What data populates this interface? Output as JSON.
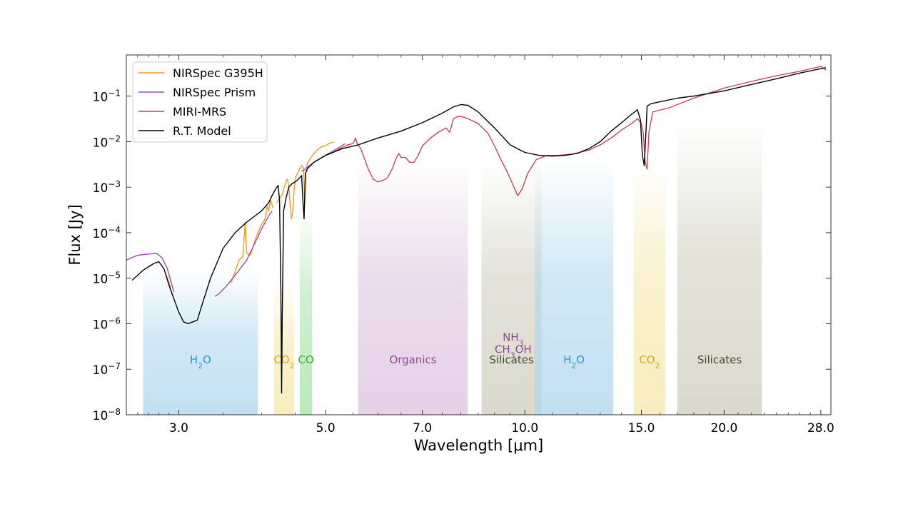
{
  "chart_data": {
    "type": "line",
    "xlabel": "Wavelength [μm]",
    "ylabel": "Flux [Jy]",
    "x_scale": "log",
    "y_scale": "log",
    "xlim": [
      2.5,
      29.0
    ],
    "ylim": [
      1e-08,
      0.8
    ],
    "x_ticks": [
      {
        "value": 3.0,
        "label": "3.0"
      },
      {
        "value": 5.0,
        "label": "5.0"
      },
      {
        "value": 7.0,
        "label": "7.0"
      },
      {
        "value": 10.0,
        "label": "10.0"
      },
      {
        "value": 15.0,
        "label": "15.0"
      },
      {
        "value": 20.0,
        "label": "20.0"
      },
      {
        "value": 28.0,
        "label": "28.0"
      }
    ],
    "y_ticks": [
      {
        "value": 1e-08,
        "base": "10",
        "exp": "−8"
      },
      {
        "value": 1e-07,
        "base": "10",
        "exp": "−7"
      },
      {
        "value": 1e-06,
        "base": "10",
        "exp": "−6"
      },
      {
        "value": 1e-05,
        "base": "10",
        "exp": "−5"
      },
      {
        "value": 0.0001,
        "base": "10",
        "exp": "−4"
      },
      {
        "value": 0.001,
        "base": "10",
        "exp": "−3"
      },
      {
        "value": 0.01,
        "base": "10",
        "exp": "−2"
      },
      {
        "value": 0.1,
        "base": "10",
        "exp": "−1"
      }
    ],
    "legend": {
      "placement": "top-left"
    },
    "bands": [
      {
        "x0": 2.65,
        "x1": 3.95,
        "top": 1.5e-05,
        "color": "#aed6ee",
        "label_parts": [
          [
            "H",
            "n"
          ],
          [
            "2",
            "sub"
          ],
          [
            "O",
            "n"
          ]
        ],
        "label_color": "#2b9bd0",
        "label_y": 1.6e-07
      },
      {
        "x0": 4.18,
        "x1": 4.48,
        "top": 1e-05,
        "color": "#f5e7a8",
        "label_parts": [
          [
            "CO",
            "n"
          ],
          [
            "2",
            "sub"
          ]
        ],
        "label_color": "#d4a52c",
        "label_y": 1.6e-07
      },
      {
        "x0": 4.57,
        "x1": 4.77,
        "top": 0.0004,
        "color": "#a6e3a6",
        "label_parts": [
          [
            "CO",
            "n"
          ]
        ],
        "label_color": "#3da83d",
        "label_y": 1.6e-07
      },
      {
        "x0": 5.6,
        "x1": 8.2,
        "top": 0.004,
        "color": "#dcc2df",
        "label_parts": [
          [
            "Organics",
            "n"
          ]
        ],
        "label_color": "#8a4d8f",
        "label_y": 1.6e-07
      },
      {
        "x0": 8.6,
        "x1": 10.6,
        "top": 0.004,
        "color": "#cdcdbc",
        "label_parts": [
          [
            "Silicates",
            "n"
          ]
        ],
        "label_color": "#4a4a30",
        "label_y": 1.6e-07
      },
      {
        "x0": 10.35,
        "x1": 13.6,
        "top": 0.004,
        "color": "#aed6ee",
        "label_parts": [
          [
            "H",
            "n"
          ],
          [
            "2",
            "sub"
          ],
          [
            "O",
            "n"
          ]
        ],
        "label_color": "#2b9bd0",
        "label_y": 1.6e-07
      },
      {
        "x0": 14.6,
        "x1": 16.3,
        "top": 0.004,
        "color": "#f5e7a8",
        "label_parts": [
          [
            "CO",
            "n"
          ],
          [
            "2",
            "sub"
          ]
        ],
        "label_color": "#d4a52c",
        "label_y": 1.6e-07
      },
      {
        "x0": 17.0,
        "x1": 22.8,
        "top": 0.03,
        "color": "#cdcdbc",
        "label_parts": [
          [
            "Silicates",
            "n"
          ]
        ],
        "label_color": "#4a4a30",
        "label_y": 1.6e-07
      }
    ],
    "molecule_labels": [
      {
        "x": 9.6,
        "y": 5e-07,
        "parts": [
          [
            "NH",
            "n"
          ],
          [
            "3",
            "sub"
          ]
        ],
        "color": "#8a4d8f"
      },
      {
        "x": 9.6,
        "y": 2.7e-07,
        "parts": [
          [
            "CH",
            "n"
          ],
          [
            "3",
            "sub"
          ],
          [
            "OH",
            "n"
          ]
        ],
        "color": "#8a4d8f"
      }
    ],
    "series": [
      {
        "name": "NIRSpec G395H",
        "color": "#f39c1f",
        "width": 1.4,
        "points": [
          [
            2.87,
            1.2e-05
          ],
          [
            2.9,
            8e-06
          ],
          [
            2.93,
            4.5e-06
          ],
          [
            2.95,
            3.5e-06
          ],
          [
            null,
            null
          ],
          [
            3.6,
            8e-06
          ],
          [
            3.7,
            2.5e-05
          ],
          [
            3.75,
            3e-05
          ],
          [
            3.78,
            0.00017
          ],
          [
            3.8,
            3.5e-05
          ],
          [
            3.85,
            3.2e-05
          ],
          [
            3.9,
            6e-05
          ],
          [
            3.95,
            0.0001
          ],
          [
            4.0,
            0.00015
          ],
          [
            4.05,
            0.0002
          ],
          [
            4.08,
            0.00038
          ],
          [
            4.1,
            0.0003
          ],
          [
            4.13,
            0.00052
          ],
          [
            4.16,
            0.00035
          ],
          [
            null,
            null
          ],
          [
            4.22,
            0.00045
          ],
          [
            4.3,
            0.0007
          ],
          [
            4.33,
            0.001
          ],
          [
            4.36,
            0.0014
          ],
          [
            4.38,
            0.0015
          ],
          [
            4.4,
            0.001
          ],
          [
            4.42,
            0.0004
          ],
          [
            4.44,
            0.0002
          ],
          [
            4.46,
            0.0003
          ],
          [
            4.48,
            0.0008
          ],
          [
            4.5,
            0.0016
          ],
          [
            4.55,
            0.0022
          ],
          [
            4.6,
            0.003
          ],
          [
            4.63,
            0.0026
          ],
          [
            4.65,
            0.00045
          ],
          [
            4.67,
            0.0025
          ],
          [
            4.7,
            0.0035
          ],
          [
            4.75,
            0.0045
          ],
          [
            4.8,
            0.0055
          ],
          [
            4.85,
            0.0065
          ],
          [
            4.9,
            0.0072
          ],
          [
            4.95,
            0.008
          ],
          [
            5.0,
            0.008
          ],
          [
            5.05,
            0.009
          ],
          [
            5.1,
            0.0095
          ],
          [
            5.15,
            0.0098
          ]
        ]
      },
      {
        "name": "NIRSpec Prism",
        "color": "#9b4dba",
        "width": 1.4,
        "points": [
          [
            2.5,
            2.5e-05
          ],
          [
            2.6,
            3.2e-05
          ],
          [
            2.7,
            3.4e-05
          ],
          [
            2.78,
            3.5e-05
          ],
          [
            2.83,
            2.8e-05
          ],
          [
            2.88,
            1.7e-05
          ],
          [
            2.93,
            7e-06
          ],
          [
            2.95,
            5e-06
          ],
          [
            null,
            null
          ],
          [
            3.4,
            4e-06
          ],
          [
            3.45,
            4.5e-06
          ],
          [
            3.55,
            7e-06
          ],
          [
            3.7,
            1.5e-05
          ],
          [
            3.8,
            2.5e-05
          ],
          [
            3.9,
            5.5e-05
          ],
          [
            4.0,
            0.00012
          ],
          [
            4.1,
            0.00023
          ],
          [
            4.15,
            0.0003
          ],
          [
            null,
            null
          ],
          [
            4.6,
            0.0022
          ],
          [
            4.8,
            0.0035
          ],
          [
            5.0,
            0.005
          ],
          [
            5.2,
            0.007
          ],
          [
            5.35,
            0.009
          ]
        ]
      },
      {
        "name": "MIRI-MRS",
        "color": "#c63b52",
        "width": 1.3,
        "points": [
          [
            4.95,
            0.0045
          ],
          [
            5.0,
            0.005
          ],
          [
            5.1,
            0.0055
          ],
          [
            5.2,
            0.0065
          ],
          [
            5.3,
            0.0075
          ],
          [
            5.4,
            0.0085
          ],
          [
            5.5,
            0.009
          ],
          [
            5.55,
            0.012
          ],
          [
            5.58,
            0.009
          ],
          [
            5.65,
            0.007
          ],
          [
            5.7,
            0.005
          ],
          [
            5.8,
            0.0025
          ],
          [
            5.9,
            0.0015
          ],
          [
            6.0,
            0.0013
          ],
          [
            6.1,
            0.0014
          ],
          [
            6.2,
            0.0016
          ],
          [
            6.3,
            0.0025
          ],
          [
            6.4,
            0.0045
          ],
          [
            6.45,
            0.0055
          ],
          [
            6.5,
            0.0045
          ],
          [
            6.6,
            0.0045
          ],
          [
            6.7,
            0.0035
          ],
          [
            6.8,
            0.0035
          ],
          [
            6.9,
            0.005
          ],
          [
            7.0,
            0.008
          ],
          [
            7.2,
            0.012
          ],
          [
            7.4,
            0.016
          ],
          [
            7.6,
            0.02
          ],
          [
            7.7,
            0.016
          ],
          [
            7.8,
            0.032
          ],
          [
            7.9,
            0.035
          ],
          [
            8.0,
            0.036
          ],
          [
            8.2,
            0.032
          ],
          [
            8.5,
            0.025
          ],
          [
            8.8,
            0.015
          ],
          [
            9.0,
            0.008
          ],
          [
            9.2,
            0.004
          ],
          [
            9.4,
            0.0022
          ],
          [
            9.6,
            0.0011
          ],
          [
            9.75,
            0.00065
          ],
          [
            9.9,
            0.0009
          ],
          [
            10.1,
            0.002
          ],
          [
            10.4,
            0.004
          ],
          [
            10.8,
            0.005
          ],
          [
            11.2,
            0.005
          ],
          [
            11.8,
            0.0053
          ],
          [
            12.5,
            0.0065
          ],
          [
            13.0,
            0.0085
          ],
          [
            13.5,
            0.012
          ],
          [
            14.0,
            0.018
          ],
          [
            14.5,
            0.025
          ],
          [
            14.8,
            0.032
          ],
          [
            15.0,
            0.025
          ],
          [
            15.1,
            0.015
          ],
          [
            15.2,
            0.0035
          ],
          [
            15.3,
            0.0025
          ],
          [
            15.4,
            0.016
          ],
          [
            15.6,
            0.045
          ],
          [
            16.5,
            0.055
          ],
          [
            18.0,
            0.09
          ],
          [
            20.0,
            0.15
          ],
          [
            22.0,
            0.21
          ],
          [
            24.0,
            0.28
          ],
          [
            26.0,
            0.35
          ],
          [
            27.5,
            0.42
          ],
          [
            28.0,
            0.45
          ],
          [
            28.5,
            0.37
          ]
        ]
      },
      {
        "name": "R.T. Model",
        "color": "#000000",
        "width": 1.4,
        "points": [
          [
            2.55,
            9e-06
          ],
          [
            2.65,
            1.5e-05
          ],
          [
            2.75,
            2.1e-05
          ],
          [
            2.8,
            2.3e-05
          ],
          [
            2.85,
            1.6e-05
          ],
          [
            2.9,
            7e-06
          ],
          [
            2.95,
            3.5e-06
          ],
          [
            3.0,
            1.8e-06
          ],
          [
            3.05,
            1.1e-06
          ],
          [
            3.1,
            1e-06
          ],
          [
            3.15,
            1.1e-06
          ],
          [
            3.2,
            1.2e-06
          ],
          [
            3.25,
            2.5e-06
          ],
          [
            3.35,
            1e-05
          ],
          [
            3.5,
            4.5e-05
          ],
          [
            3.65,
            0.0001
          ],
          [
            3.8,
            0.00017
          ],
          [
            4.0,
            0.0003
          ],
          [
            4.1,
            0.00045
          ],
          [
            4.15,
            0.00065
          ],
          [
            4.2,
            0.0009
          ],
          [
            4.24,
            0.0011
          ],
          [
            4.26,
            0.0005
          ],
          [
            4.28,
            5e-06
          ],
          [
            4.29,
            3e-08
          ],
          [
            4.3,
            1.5e-06
          ],
          [
            4.32,
            0.0003
          ],
          [
            4.36,
            0.0006
          ],
          [
            4.4,
            0.001
          ],
          [
            4.45,
            0.0012
          ],
          [
            4.5,
            0.0013
          ],
          [
            4.55,
            0.0015
          ],
          [
            4.6,
            0.0018
          ],
          [
            4.62,
            0.0005
          ],
          [
            4.64,
            0.0002
          ],
          [
            4.66,
            0.002
          ],
          [
            4.7,
            0.0026
          ],
          [
            4.8,
            0.0035
          ],
          [
            5.0,
            0.005
          ],
          [
            5.3,
            0.007
          ],
          [
            5.6,
            0.0085
          ],
          [
            6.0,
            0.012
          ],
          [
            6.5,
            0.017
          ],
          [
            7.0,
            0.026
          ],
          [
            7.5,
            0.042
          ],
          [
            7.8,
            0.058
          ],
          [
            8.0,
            0.065
          ],
          [
            8.2,
            0.063
          ],
          [
            8.5,
            0.045
          ],
          [
            9.0,
            0.02
          ],
          [
            9.5,
            0.0085
          ],
          [
            10.0,
            0.0058
          ],
          [
            10.5,
            0.005
          ],
          [
            11.0,
            0.0048
          ],
          [
            11.5,
            0.005
          ],
          [
            12.0,
            0.0055
          ],
          [
            12.5,
            0.007
          ],
          [
            13.0,
            0.01
          ],
          [
            13.5,
            0.017
          ],
          [
            14.0,
            0.026
          ],
          [
            14.5,
            0.04
          ],
          [
            14.8,
            0.05
          ],
          [
            14.95,
            0.03
          ],
          [
            15.05,
            0.005
          ],
          [
            15.15,
            0.003
          ],
          [
            15.25,
            0.02
          ],
          [
            15.3,
            0.06
          ],
          [
            15.5,
            0.068
          ],
          [
            16.0,
            0.075
          ],
          [
            17.0,
            0.09
          ],
          [
            18.0,
            0.1
          ],
          [
            20.0,
            0.13
          ],
          [
            22.0,
            0.18
          ],
          [
            24.0,
            0.24
          ],
          [
            26.0,
            0.32
          ],
          [
            28.0,
            0.4
          ],
          [
            28.5,
            0.42
          ]
        ]
      }
    ]
  }
}
